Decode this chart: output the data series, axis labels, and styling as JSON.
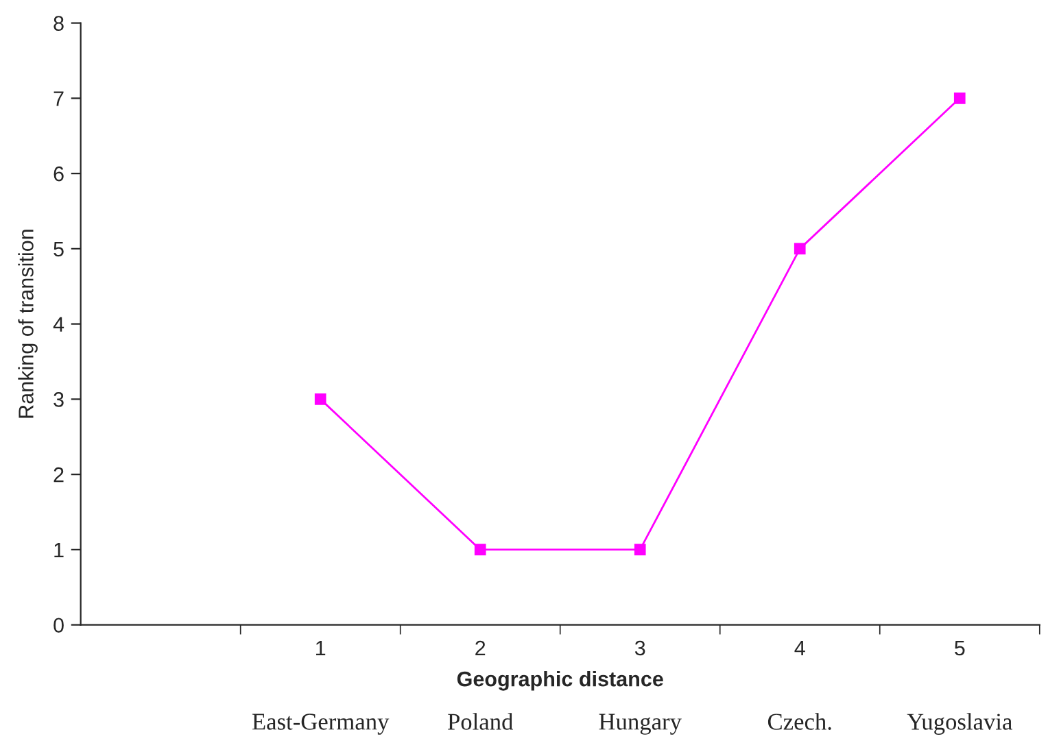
{
  "chart_data": {
    "type": "line",
    "xlabel": "Geographic distance",
    "ylabel": "Ranking of transition",
    "categories": [
      null,
      "1",
      "2",
      "3",
      "4",
      "5"
    ],
    "series": [
      {
        "color": "#ff00ff",
        "values": [
          null,
          3,
          1,
          1,
          5,
          7
        ]
      }
    ],
    "ylim": [
      0,
      8
    ],
    "yticks": [
      0,
      1,
      2,
      3,
      4,
      5,
      6,
      7,
      8
    ],
    "grid": false,
    "marker": "square",
    "line_style": "solid",
    "annotations": [
      "East-Germany",
      "Poland",
      "Hungary",
      "Czech.",
      "Yugoslavia"
    ]
  }
}
